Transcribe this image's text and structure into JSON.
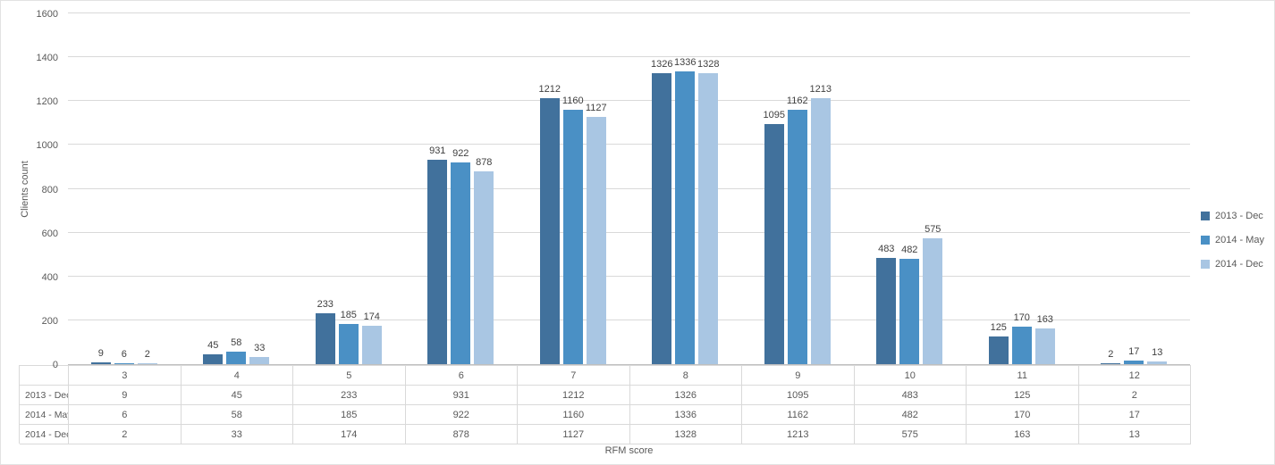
{
  "chart_data": {
    "type": "bar",
    "title": "",
    "xlabel": "RFM score",
    "ylabel": "Clients count",
    "ylim": [
      0,
      1600
    ],
    "yticks": [
      0,
      200,
      400,
      600,
      800,
      1000,
      1200,
      1400,
      1600
    ],
    "grid": true,
    "legend_position": "right",
    "has_data_table": true,
    "categories": [
      "3",
      "4",
      "5",
      "6",
      "7",
      "8",
      "9",
      "10",
      "11",
      "12"
    ],
    "series": [
      {
        "name": "2013 - Dec",
        "color": "#41719C",
        "values": [
          9,
          45,
          233,
          931,
          1212,
          1326,
          1095,
          483,
          125,
          2
        ]
      },
      {
        "name": "2014 - May",
        "color": "#4A90C5",
        "values": [
          6,
          58,
          185,
          922,
          1160,
          1336,
          1162,
          482,
          170,
          17
        ]
      },
      {
        "name": "2014 - Dec",
        "color": "#A9C6E3",
        "values": [
          2,
          33,
          174,
          878,
          1127,
          1328,
          1213,
          575,
          163,
          13
        ]
      }
    ]
  },
  "colors": {
    "gridline": "#D9D9D9",
    "axis_line": "#BFBFBF",
    "table_border": "#D9D9D9",
    "tick_text": "#595959",
    "value_label_text": "#404040",
    "background": "#FFFFFF"
  }
}
